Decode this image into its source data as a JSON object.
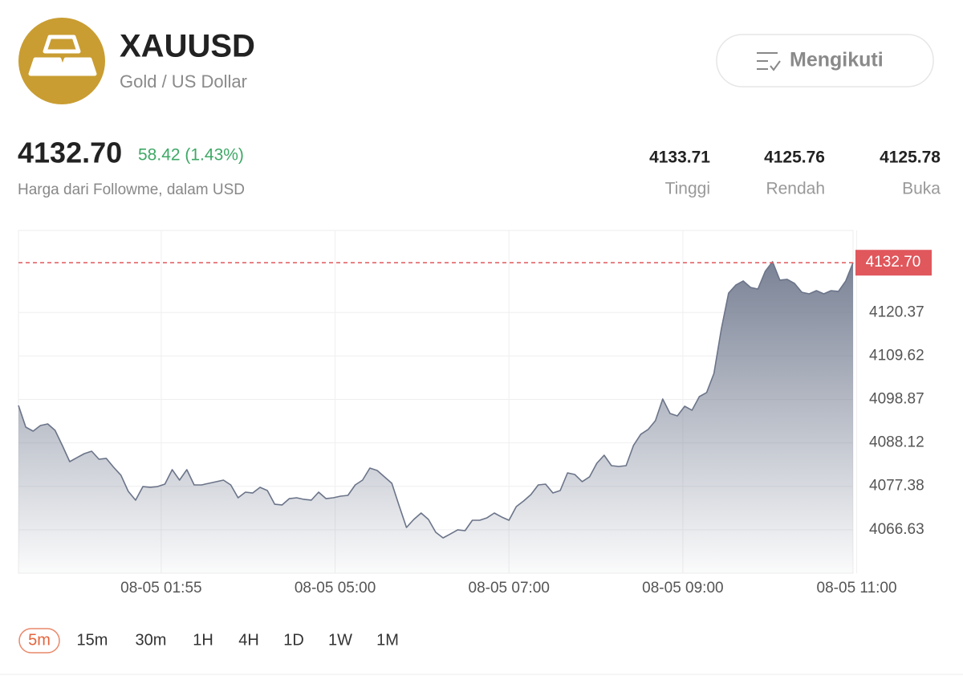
{
  "header": {
    "symbol": "XAUUSD",
    "name": "Gold / US Dollar",
    "follow_button": "Mengikuti"
  },
  "quote": {
    "price": "4132.70",
    "change": "58.42 (1.43%)",
    "source": "Harga dari Followme, dalam USD",
    "stats": [
      {
        "value": "4133.71",
        "label": "Tinggi"
      },
      {
        "value": "4125.76",
        "label": "Rendah"
      },
      {
        "value": "4125.78",
        "label": "Buka"
      }
    ]
  },
  "chart_data": {
    "type": "area",
    "color": "#6b7489",
    "values": [
      4097.39,
      4092.02,
      4091.03,
      4092.42,
      4092.82,
      4091.23,
      4087.46,
      4083.48,
      4084.48,
      4085.47,
      4086.06,
      4084.08,
      4084.28,
      4082.09,
      4080.11,
      4076.13,
      4073.95,
      4077.32,
      4077.13,
      4077.32,
      4077.92,
      4081.5,
      4078.91,
      4081.5,
      4077.72,
      4077.72,
      4078.12,
      4078.52,
      4078.91,
      4077.72,
      4074.54,
      4075.93,
      4075.73,
      4077.13,
      4076.33,
      4072.95,
      4072.76,
      4074.34,
      4074.54,
      4074.15,
      4073.95,
      4075.93,
      4074.34,
      4074.54,
      4074.94,
      4075.14,
      4077.72,
      4078.91,
      4081.89,
      4081.3,
      4079.71,
      4078.12,
      4072.56,
      4067.19,
      4069.18,
      4070.77,
      4069.18,
      4066.0,
      4064.61,
      4065.6,
      4066.6,
      4066.4,
      4068.98,
      4068.98,
      4069.58,
      4070.77,
      4069.78,
      4068.98,
      4072.36,
      4073.75,
      4075.34,
      4077.72,
      4077.92,
      4075.73,
      4076.33,
      4080.7,
      4080.3,
      4078.52,
      4079.71,
      4083.08,
      4085.07,
      4082.49,
      4082.29,
      4082.49,
      4087.46,
      4090.24,
      4091.43,
      4093.61,
      4098.98,
      4095.4,
      4094.81,
      4097.19,
      4096.2,
      4099.57,
      4100.57,
      4105.33,
      4116.26,
      4125.2,
      4127.19,
      4128.18,
      4126.59,
      4126.19,
      4130.56,
      4132.95,
      4128.38,
      4128.58,
      4127.58,
      4125.4,
      4125.0,
      4125.79,
      4125.0,
      4125.79,
      4125.6,
      4128.18,
      4132.7
    ],
    "xlim": [
      0,
      114
    ],
    "xticks": [
      {
        "value": 19.5,
        "label": "08-05 01:55"
      },
      {
        "value": 43.25,
        "label": "08-05 05:00"
      },
      {
        "value": 67,
        "label": "08-05 07:00"
      },
      {
        "value": 90.75,
        "label": "08-05 09:00"
      },
      {
        "value": 114.5,
        "label": "08-05 11:00"
      }
    ],
    "ylim": [
      4055.87,
      4140.69
    ],
    "yticks": [
      4066.63,
      4077.38,
      4088.12,
      4098.87,
      4109.62,
      4120.37
    ],
    "grid": true,
    "reference_line": {
      "value": 4132.7,
      "label": "4132.70",
      "color": "#e0575c"
    }
  },
  "intervals": {
    "options": [
      "5m",
      "15m",
      "30m",
      "1H",
      "4H",
      "1D",
      "1W",
      "1M"
    ],
    "selected": 0
  }
}
